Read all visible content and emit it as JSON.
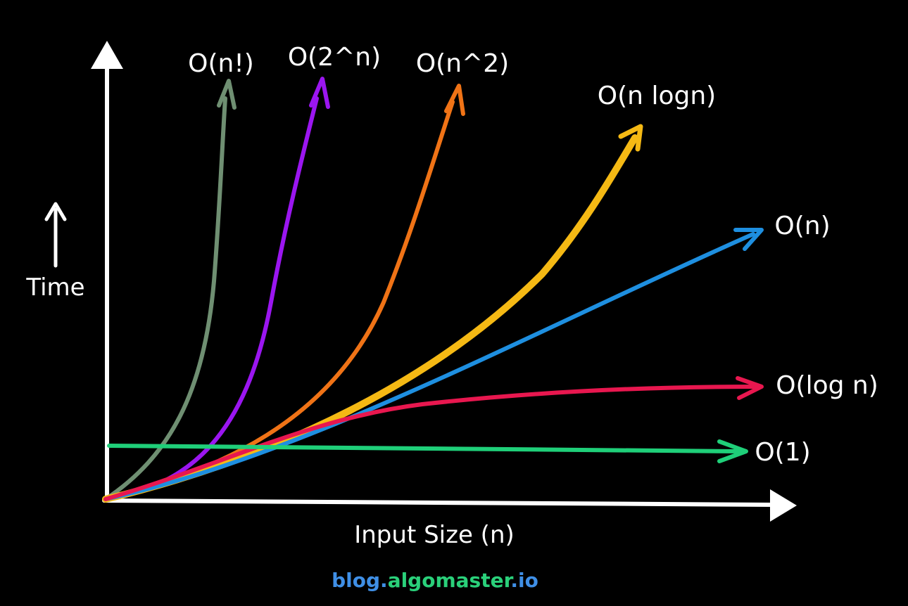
{
  "chart_data": {
    "type": "line",
    "title": "",
    "xlabel": "Input Size (n)",
    "ylabel": "Time",
    "grid": false,
    "series": [
      {
        "key": "factorial",
        "name": "O(n!)",
        "color": "#6f8f72"
      },
      {
        "key": "exponential",
        "name": "O(2^n)",
        "color": "#9b16f0"
      },
      {
        "key": "quadratic",
        "name": "O(n^2)",
        "color": "#f07316"
      },
      {
        "key": "linearithmic",
        "name": "O(n logn)",
        "color": "#f5b914"
      },
      {
        "key": "linear",
        "name": "O(n)",
        "color": "#1e8fe0"
      },
      {
        "key": "logarithmic",
        "name": "O(log n)",
        "color": "#e8174f"
      },
      {
        "key": "constant",
        "name": "O(1)",
        "color": "#1fcf79"
      }
    ]
  },
  "footer": {
    "part1": "blog.",
    "part2": "algomaster",
    "part3": ".io",
    "color1": "#3f8fe6",
    "color2": "#2ad07a",
    "color3": "#3f8fe6"
  }
}
